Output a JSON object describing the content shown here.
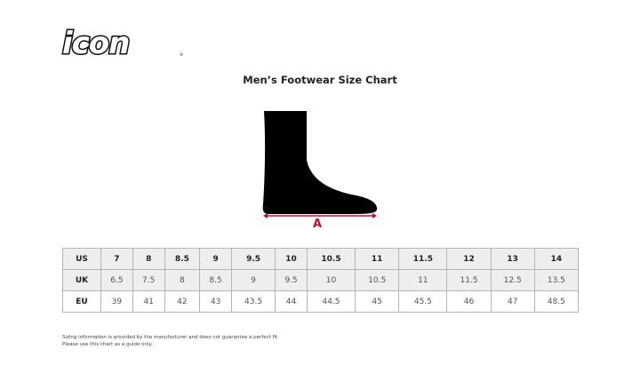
{
  "logo": {
    "text": "icon"
  },
  "title": "Men’s Footwear Size Chart",
  "diagram": {
    "measure_label": "A",
    "accent_color": "#c8102e"
  },
  "table": {
    "rows": [
      {
        "label": "US",
        "values": [
          "7",
          "8",
          "8.5",
          "9",
          "9.5",
          "10",
          "10.5",
          "11",
          "11.5",
          "12",
          "13",
          "14"
        ]
      },
      {
        "label": "UK",
        "values": [
          "6.5",
          "7.5",
          "8",
          "8.5",
          "9",
          "9.5",
          "10",
          "10.5",
          "11",
          "11.5",
          "12.5",
          "13.5"
        ]
      },
      {
        "label": "EU",
        "values": [
          "39",
          "41",
          "42",
          "43",
          "43.5",
          "44",
          "44.5",
          "45",
          "45.5",
          "46",
          "47",
          "48.5"
        ]
      }
    ]
  },
  "note": {
    "line1": "Sizing information is provided by the manufacturer and does not guarantee a perfect fit.",
    "line2": "Please use this chart as a guide only."
  }
}
